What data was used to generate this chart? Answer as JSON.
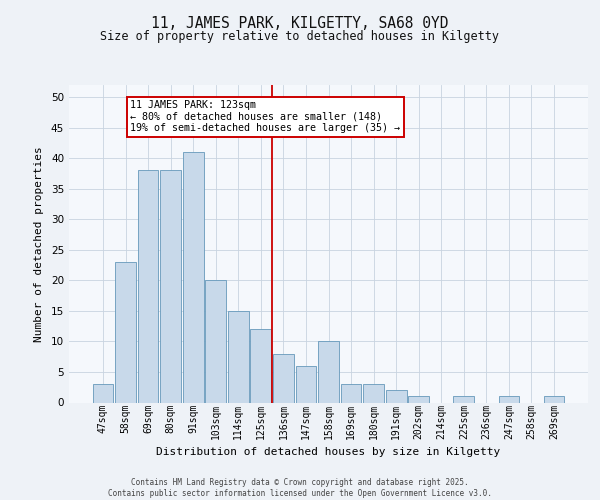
{
  "title": "11, JAMES PARK, KILGETTY, SA68 0YD",
  "subtitle": "Size of property relative to detached houses in Kilgetty",
  "xlabel": "Distribution of detached houses by size in Kilgetty",
  "ylabel": "Number of detached properties",
  "categories": [
    "47sqm",
    "58sqm",
    "69sqm",
    "80sqm",
    "91sqm",
    "103sqm",
    "114sqm",
    "125sqm",
    "136sqm",
    "147sqm",
    "158sqm",
    "169sqm",
    "180sqm",
    "191sqm",
    "202sqm",
    "214sqm",
    "225sqm",
    "236sqm",
    "247sqm",
    "258sqm",
    "269sqm"
  ],
  "values": [
    3,
    23,
    38,
    38,
    41,
    20,
    15,
    12,
    8,
    6,
    10,
    3,
    3,
    2,
    1,
    0,
    1,
    0,
    1,
    0,
    1
  ],
  "bar_color": "#c8d9ea",
  "bar_edge_color": "#6699bb",
  "vline_color": "#cc0000",
  "vline_x": 7.5,
  "annotation_text": "11 JAMES PARK: 123sqm\n← 80% of detached houses are smaller (148)\n19% of semi-detached houses are larger (35) →",
  "annotation_box_color": "#cc0000",
  "annotation_bg": "#ffffff",
  "ylim": [
    0,
    52
  ],
  "yticks": [
    0,
    5,
    10,
    15,
    20,
    25,
    30,
    35,
    40,
    45,
    50
  ],
  "footer1": "Contains HM Land Registry data © Crown copyright and database right 2025.",
  "footer2": "Contains public sector information licensed under the Open Government Licence v3.0.",
  "bg_color": "#eef2f7",
  "plot_bg_color": "#f5f8fc",
  "grid_color": "#c8d4e0"
}
